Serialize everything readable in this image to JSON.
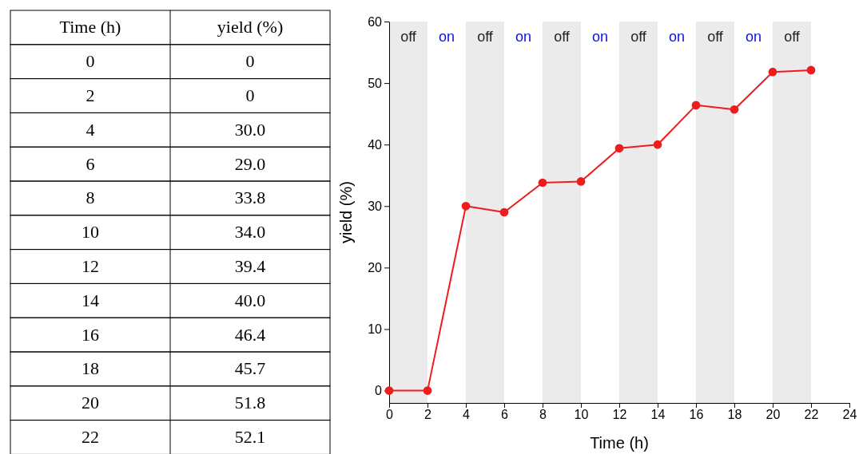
{
  "chart_data": {
    "type": "line",
    "xlabel": "Time (h)",
    "ylabel": "yield (%)",
    "x": [
      0,
      2,
      4,
      6,
      8,
      10,
      12,
      14,
      16,
      18,
      20,
      22
    ],
    "series": [
      {
        "color": "#ee1c1c",
        "values": [
          0,
          0,
          30.0,
          29.0,
          33.8,
          34.0,
          39.4,
          40.0,
          46.4,
          45.7,
          51.8,
          52.1
        ]
      }
    ],
    "value_labels": [
      "0",
      "0",
      "30.0",
      "29.0",
      "33.8",
      "34.0",
      "39.4",
      "40.0",
      "46.4",
      "45.7",
      "51.8",
      "52.1"
    ],
    "xlim": [
      0,
      24
    ],
    "xticks": [
      0,
      2,
      4,
      6,
      8,
      10,
      12,
      14,
      16,
      18,
      20,
      22,
      24
    ],
    "ylim": [
      -2,
      60
    ],
    "yticks": [
      0,
      10,
      20,
      30,
      40,
      50,
      60
    ],
    "marker": "circle",
    "line_style": "solid",
    "annotations": [
      "0",
      "2",
      "4",
      "6",
      "8",
      "10",
      "12",
      "14",
      "16",
      "18",
      "20",
      "22",
      "on",
      "on",
      "on",
      "on",
      "on"
    ],
    "bands": [
      {
        "axis": "x",
        "from": 0,
        "to": 2,
        "label": "off",
        "color": "#ebebeb"
      },
      {
        "axis": "x",
        "from": 4,
        "to": 6,
        "label": "off",
        "color": "#ebebeb"
      },
      {
        "axis": "x",
        "from": 8,
        "to": 10,
        "label": "off",
        "color": "#ebebeb"
      },
      {
        "axis": "x",
        "from": 12,
        "to": 14,
        "label": "off",
        "color": "#ebebeb"
      },
      {
        "axis": "x",
        "from": 16,
        "to": 18,
        "label": "off",
        "color": "#ebebeb"
      },
      {
        "axis": "x",
        "from": 20,
        "to": 22,
        "label": "off",
        "color": "#ebebeb"
      }
    ]
  }
}
